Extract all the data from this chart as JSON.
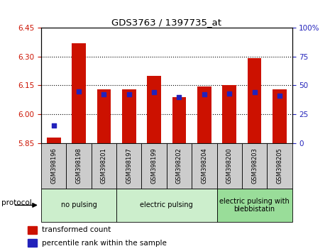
{
  "title": "GDS3763 / 1397735_at",
  "samples": [
    "GSM398196",
    "GSM398198",
    "GSM398201",
    "GSM398197",
    "GSM398199",
    "GSM398202",
    "GSM398204",
    "GSM398200",
    "GSM398203",
    "GSM398205"
  ],
  "transformed_count": [
    5.88,
    6.37,
    6.13,
    6.13,
    6.2,
    6.09,
    6.145,
    6.15,
    6.29,
    6.13
  ],
  "percentile_rank": [
    15,
    45,
    42,
    42,
    44,
    40,
    42,
    43,
    44,
    41
  ],
  "ylim_left": [
    5.85,
    6.45
  ],
  "ylim_right": [
    0,
    100
  ],
  "yticks_left": [
    5.85,
    6.0,
    6.15,
    6.3,
    6.45
  ],
  "yticks_right": [
    0,
    25,
    50,
    75,
    100
  ],
  "bar_color": "#cc1100",
  "dot_color": "#2222bb",
  "left_tick_color": "#cc1100",
  "right_tick_color": "#2222bb",
  "groups": [
    {
      "label": "no pulsing",
      "start": 0,
      "end": 3,
      "color": "#cceecc"
    },
    {
      "label": "electric pulsing",
      "start": 3,
      "end": 7,
      "color": "#cceecc"
    },
    {
      "label": "electric pulsing with\nblebbistatin",
      "start": 7,
      "end": 10,
      "color": "#99dd99"
    }
  ],
  "legend_items": [
    {
      "label": "transformed count",
      "color": "#cc1100"
    },
    {
      "label": "percentile rank within the sample",
      "color": "#2222bb"
    }
  ],
  "bar_width": 0.55,
  "base_value": 5.85,
  "sample_box_color": "#cccccc",
  "fig_bg_color": "#ffffff"
}
